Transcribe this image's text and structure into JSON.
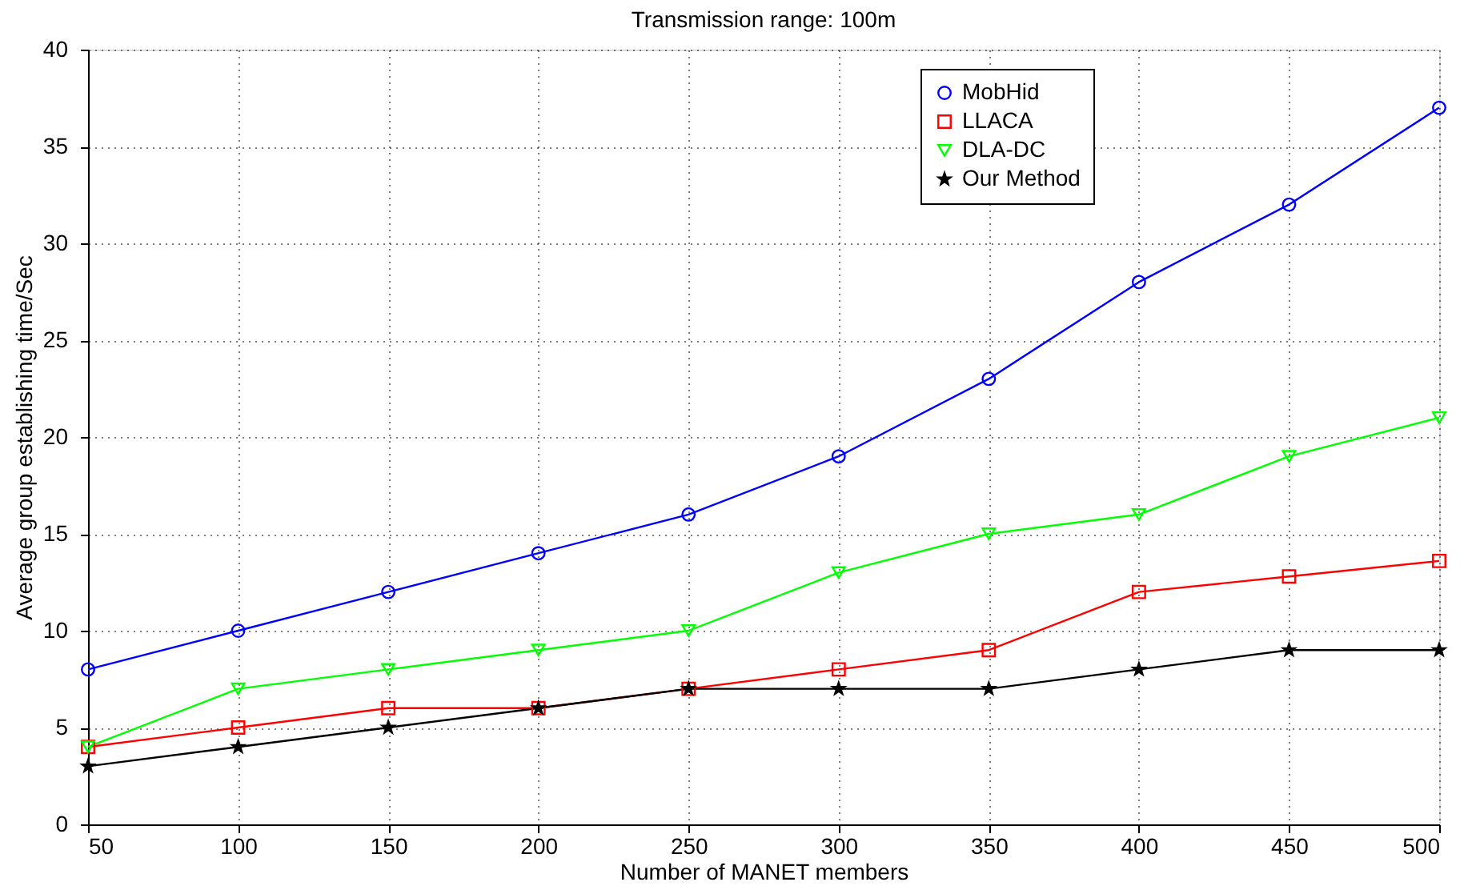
{
  "chart_data": {
    "type": "line",
    "title": "Transmission range: 100m",
    "xlabel": "Number of MANET members",
    "ylabel": "Average group establishing time/Sec",
    "x": [
      50,
      100,
      150,
      200,
      250,
      300,
      350,
      400,
      450,
      500
    ],
    "series": [
      {
        "name": "MobHid",
        "color": "#0000ff",
        "marker": "circle",
        "values": [
          8,
          10,
          12,
          14,
          16,
          19,
          23,
          28,
          32,
          37
        ]
      },
      {
        "name": "LLACA",
        "color": "#ff0000",
        "marker": "square",
        "values": [
          4,
          5,
          6,
          6,
          7,
          8,
          9,
          12,
          12.8,
          13.6
        ]
      },
      {
        "name": "DLA-DC",
        "color": "#00ff00",
        "marker": "triangle",
        "values": [
          4,
          7,
          8,
          9,
          10,
          13,
          15,
          16,
          19,
          21
        ]
      },
      {
        "name": "Our Method",
        "color": "#000000",
        "marker": "star",
        "values": [
          3,
          4,
          5,
          6,
          7,
          7,
          7,
          8,
          9,
          9
        ]
      }
    ],
    "xlim": [
      50,
      500
    ],
    "xticks": [
      50,
      100,
      150,
      200,
      250,
      300,
      350,
      400,
      450,
      500
    ],
    "ylim": [
      0,
      40
    ],
    "yticks": [
      0,
      5,
      10,
      15,
      20,
      25,
      30,
      35,
      40
    ],
    "grid": true,
    "legend": "top right",
    "line_style": "solid"
  }
}
